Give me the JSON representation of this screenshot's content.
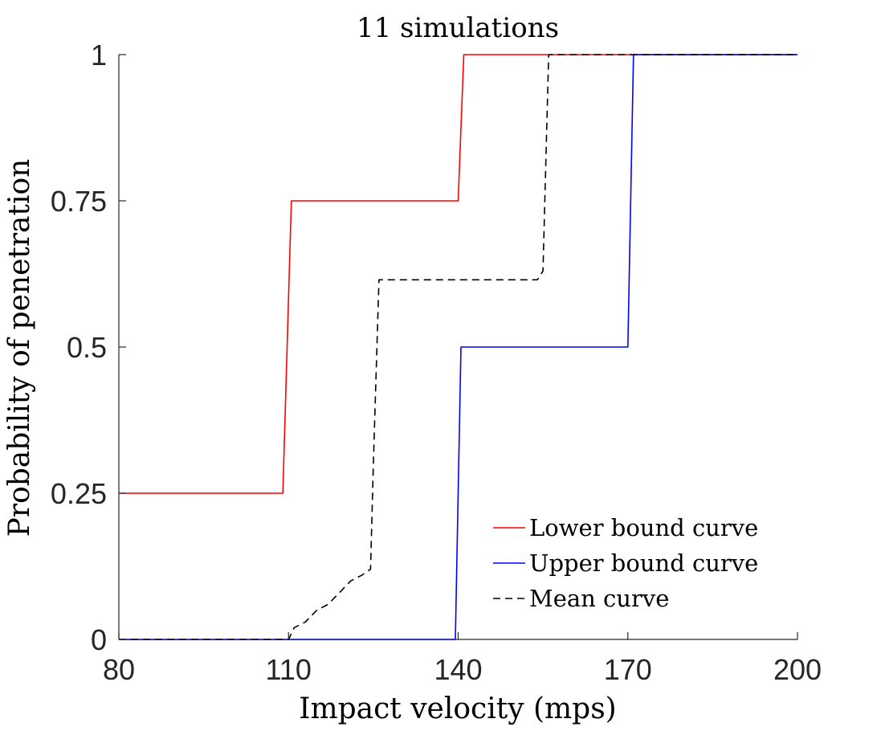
{
  "chart_data": {
    "type": "line",
    "title": "11 simulations",
    "xlabel": "Impact velocity (mps)",
    "ylabel": "Probability of penetration",
    "xlim": [
      80,
      200
    ],
    "ylim": [
      0,
      1
    ],
    "xticks": [
      80,
      110,
      140,
      170,
      200
    ],
    "xtick_labels": [
      "80",
      "110",
      "140",
      "170",
      "200"
    ],
    "yticks": [
      0,
      0.25,
      0.5,
      0.75,
      1
    ],
    "ytick_labels": [
      "0",
      "0.25",
      "0.5",
      "0.75",
      "1"
    ],
    "grid": false,
    "legend_position": "bottom-right",
    "series": [
      {
        "name": "Lower bound curve",
        "color": "#ff0000",
        "dash": "solid",
        "x": [
          80,
          109,
          110.5,
          140,
          141,
          200
        ],
        "y": [
          0.25,
          0.25,
          0.75,
          0.75,
          1,
          1
        ]
      },
      {
        "name": "Upper bound curve",
        "color": "#0000ff",
        "dash": "solid",
        "x": [
          80,
          139.5,
          140.5,
          170,
          171,
          200
        ],
        "y": [
          0,
          0,
          0.5,
          0.5,
          1,
          1
        ]
      },
      {
        "name": "Mean curve",
        "color": "#000000",
        "dash": "dashed",
        "x": [
          80,
          110,
          111,
          113,
          115,
          117,
          119,
          121,
          123,
          124.5,
          125,
          126,
          154,
          155,
          156,
          200
        ],
        "y": [
          0,
          0,
          0.02,
          0.03,
          0.05,
          0.06,
          0.08,
          0.1,
          0.11,
          0.12,
          0.3,
          0.615,
          0.615,
          0.63,
          1,
          1
        ]
      }
    ]
  }
}
